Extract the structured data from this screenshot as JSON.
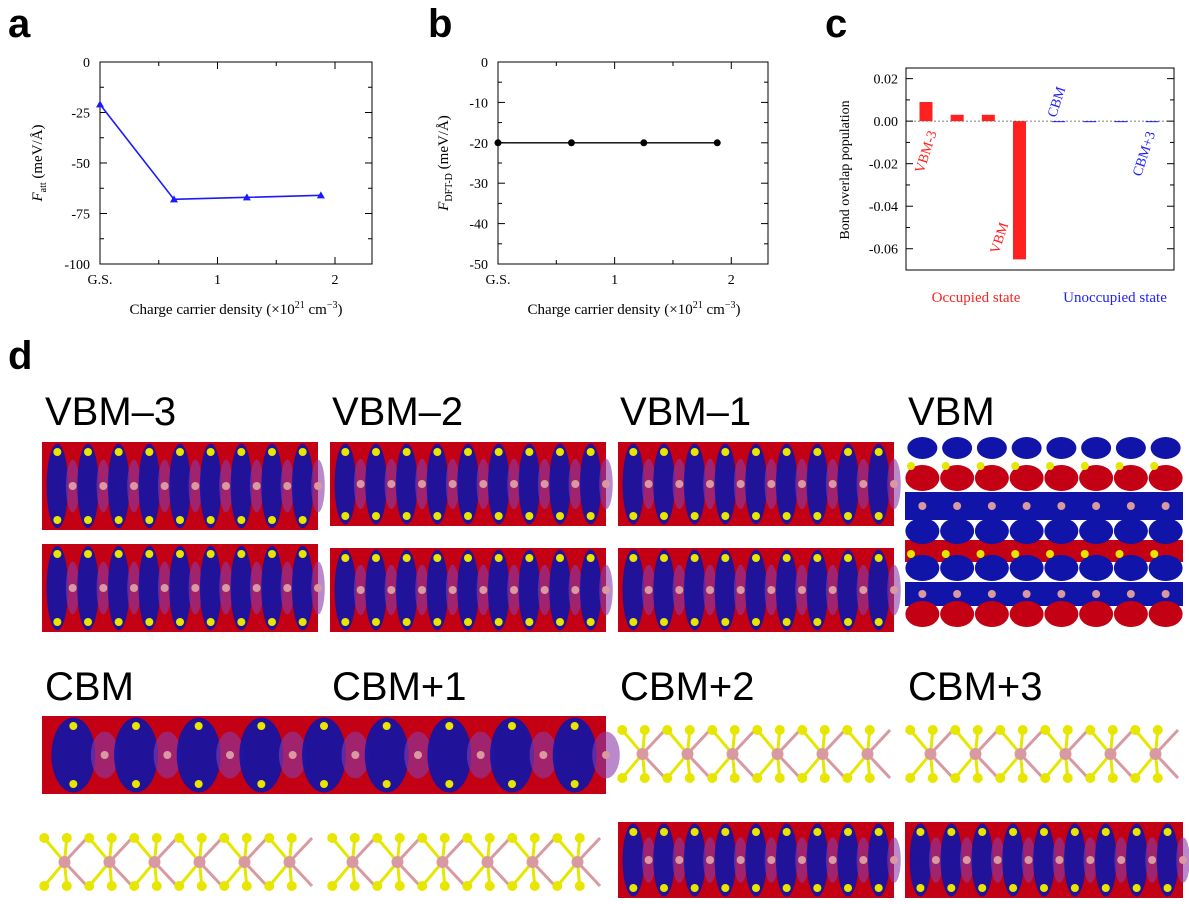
{
  "panel_letters": {
    "a": "a",
    "b": "b",
    "c": "c",
    "d": "d"
  },
  "colors": {
    "line_a": "#1a1aff",
    "line_b": "#000000",
    "occupied": "#ff2020",
    "unoccupied": "#2020ff",
    "orbital_red": "#c40014",
    "orbital_blue": "#1014a8",
    "atom_s": "#e6e600",
    "atom_mo": "#d89aa0"
  },
  "chart_data": [
    {
      "type": "line",
      "panel": "a",
      "categories": [
        "G.S.",
        "1",
        "2"
      ],
      "x": [
        0,
        0.68,
        1.35,
        2.03
      ],
      "y": [
        -21,
        -68,
        -67,
        -66
      ],
      "xlim": [
        0,
        2.5
      ],
      "ylim": [
        -100,
        0
      ],
      "yticks": [
        "0",
        "-25",
        "-50",
        "-75",
        "-100"
      ],
      "xticks": [
        "G.S.",
        "1",
        "2"
      ],
      "ylabel_main": "F",
      "ylabel_sub": "att",
      "ylabel_unit": " (meV/Å)",
      "xlabel": "Charge carrier density (×10",
      "xlabel_exp": "21",
      "xlabel_unit": " cm",
      "xlabel_unit_exp": "−3",
      "xlabel_close": ")",
      "marker": "triangle",
      "grid": false
    },
    {
      "type": "line",
      "panel": "b",
      "x": [
        0,
        0.68,
        1.35,
        2.03
      ],
      "y": [
        -20,
        -20,
        -20,
        -20
      ],
      "xlim": [
        0,
        2.5
      ],
      "ylim": [
        -50,
        0
      ],
      "yticks": [
        "0",
        "-10",
        "-20",
        "-30",
        "-40",
        "-50"
      ],
      "xticks": [
        "G.S.",
        "1",
        "2"
      ],
      "ylabel_main": "F",
      "ylabel_sub": "DFT-D",
      "ylabel_unit": " (meV/Å)",
      "xlabel": "Charge carrier density (×10",
      "xlabel_exp": "21",
      "xlabel_unit": " cm",
      "xlabel_unit_exp": "−3",
      "xlabel_close": ")",
      "marker": "circle",
      "grid": false
    },
    {
      "type": "bar",
      "panel": "c",
      "categories": [
        "VBM-3",
        "VBM-2",
        "VBM-1",
        "VBM",
        "CBM",
        "CBM+1",
        "CBM+2",
        "CBM+3"
      ],
      "values": [
        0.009,
        0.003,
        0.003,
        -0.065,
        -0.0003,
        -0.0003,
        -0.0003,
        -0.0003
      ],
      "ylim": [
        -0.07,
        0.025
      ],
      "yticks": [
        "0.02",
        "0.00",
        "-0.02",
        "-0.04",
        "-0.06"
      ],
      "ylabel": "Bond overlap population",
      "bar_labels": {
        "vbm3": "VBM-3",
        "vbm": "VBM",
        "cbm": "CBM",
        "cbm3": "CBM+3"
      },
      "group_labels": {
        "occupied": "Occupied state",
        "unoccupied": "Unoccupied state"
      },
      "grid": false
    }
  ],
  "states": {
    "vbm3": "VBM–3",
    "vbm2": "VBM–2",
    "vbm1": "VBM–1",
    "vbm": "VBM",
    "cbm": "CBM",
    "cbm1": "CBM+1",
    "cbm2": "CBM+2",
    "cbm3": "CBM+3"
  }
}
